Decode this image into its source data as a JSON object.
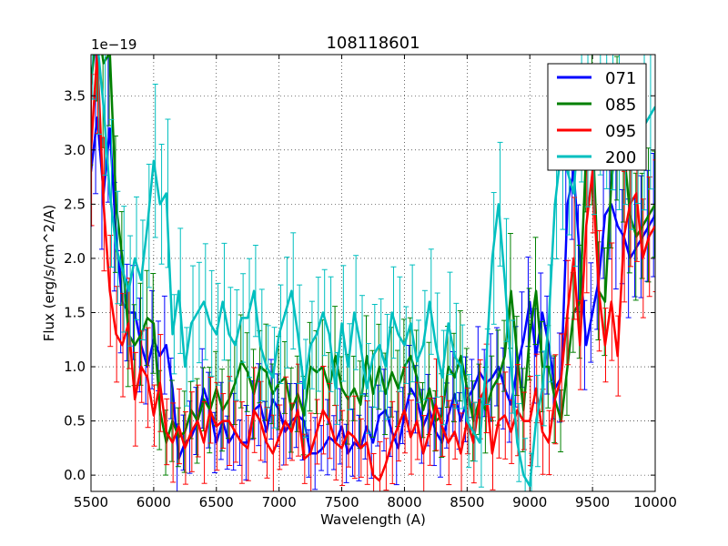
{
  "chart_data": {
    "type": "line",
    "title": "108118601",
    "xlabel": "Wavelength (A)",
    "ylabel": "Flux (erg/s/cm^2/A)",
    "y_multiplier_label": "1e−19",
    "xlim": [
      5500,
      10000
    ],
    "ylim": [
      -0.15,
      3.88
    ],
    "x_ticks": [
      5500,
      6000,
      6500,
      7000,
      7500,
      8000,
      8500,
      9000,
      9500,
      10000
    ],
    "x_tick_labels": [
      "5500",
      "6000",
      "6500",
      "7000",
      "7500",
      "8000",
      "8500",
      "9000",
      "9500",
      "10000"
    ],
    "y_ticks": [
      0.0,
      0.5,
      1.0,
      1.5,
      2.0,
      2.5,
      3.0,
      3.5
    ],
    "y_tick_labels": [
      "0.0",
      "0.5",
      "1.0",
      "1.5",
      "2.0",
      "2.5",
      "3.0",
      "3.5"
    ],
    "grid": true,
    "legend_position": "top-right",
    "x_start": 5500,
    "x_step": 50,
    "series": [
      {
        "name": "071",
        "color": "#0000ff",
        "values": [
          2.8,
          3.3,
          2.6,
          3.2,
          2.2,
          1.6,
          1.5,
          1.5,
          1.2,
          1.0,
          1.25,
          1.1,
          1.2,
          0.8,
          0.15,
          0.3,
          0.35,
          0.5,
          0.8,
          0.6,
          0.3,
          0.5,
          0.3,
          0.4,
          0.3,
          0.3,
          0.6,
          0.65,
          0.4,
          0.7,
          0.6,
          0.4,
          0.5,
          0.55,
          0.5,
          0.2,
          0.2,
          0.25,
          0.35,
          0.3,
          0.45,
          0.2,
          0.3,
          0.25,
          0.45,
          0.3,
          0.55,
          0.6,
          0.4,
          0.25,
          0.55,
          0.8,
          0.7,
          0.45,
          0.6,
          0.4,
          0.3,
          0.55,
          0.75,
          0.5,
          0.7,
          0.8,
          0.95,
          0.85,
          0.9,
          1.0,
          0.8,
          0.65,
          1.0,
          1.25,
          1.6,
          1.1,
          1.5,
          1.2,
          0.8,
          0.9,
          2.5,
          2.8,
          2.0,
          1.2,
          1.5,
          1.8,
          2.4,
          2.5,
          2.3,
          2.2,
          2.0,
          2.1,
          2.2,
          2.3,
          2.4
        ]
      },
      {
        "name": "085",
        "color": "#008000",
        "values": [
          3.6,
          4.2,
          3.8,
          3.9,
          2.5,
          2.0,
          1.3,
          1.2,
          1.3,
          1.45,
          1.4,
          0.6,
          0.3,
          0.5,
          0.35,
          0.4,
          0.6,
          0.5,
          0.7,
          0.6,
          0.8,
          0.6,
          0.7,
          0.85,
          1.05,
          0.95,
          0.75,
          1.0,
          0.95,
          0.75,
          0.85,
          0.9,
          0.6,
          0.75,
          0.55,
          1.0,
          0.95,
          1.0,
          0.8,
          1.1,
          0.8,
          0.7,
          0.8,
          0.65,
          1.1,
          0.75,
          1.0,
          0.75,
          0.95,
          0.8,
          1.0,
          1.1,
          0.9,
          0.6,
          0.8,
          0.5,
          0.55,
          1.0,
          0.9,
          1.1,
          0.8,
          0.5,
          0.7,
          0.6,
          0.8,
          0.9,
          1.1,
          1.7,
          1.1,
          0.6,
          1.3,
          1.7,
          1.0,
          1.0,
          0.7,
          0.5,
          1.0,
          1.5,
          1.6,
          3.0,
          3.2,
          1.7,
          1.6,
          2.7,
          3.2,
          3.0,
          2.4,
          2.2,
          2.3,
          2.4,
          2.5
        ]
      },
      {
        "name": "095",
        "color": "#ff0000",
        "values": [
          3.0,
          3.9,
          2.5,
          1.7,
          1.3,
          1.2,
          1.4,
          0.7,
          1.0,
          0.9,
          0.55,
          0.85,
          0.4,
          0.3,
          0.45,
          0.25,
          0.4,
          0.5,
          0.3,
          0.6,
          0.45,
          0.5,
          0.5,
          0.4,
          0.3,
          0.25,
          0.6,
          0.5,
          0.3,
          0.2,
          0.35,
          0.5,
          0.4,
          0.6,
          0.15,
          0.2,
          0.4,
          0.6,
          0.5,
          0.3,
          0.25,
          0.4,
          0.35,
          0.25,
          0.3,
          0.0,
          -0.05,
          0.1,
          0.3,
          0.45,
          0.6,
          0.35,
          0.5,
          0.2,
          0.4,
          0.65,
          0.45,
          0.3,
          0.4,
          0.2,
          0.5,
          0.3,
          0.7,
          0.8,
          0.2,
          0.5,
          0.55,
          0.4,
          0.6,
          0.5,
          0.5,
          0.8,
          0.4,
          0.3,
          0.7,
          0.9,
          1.5,
          2.0,
          1.2,
          2.3,
          2.8,
          1.7,
          1.2,
          1.6,
          1.1,
          2.2,
          2.5,
          2.6,
          2.0,
          2.2,
          2.3
        ]
      },
      {
        "name": "200",
        "color": "#00bfbf",
        "values": [
          4.2,
          4.0,
          3.4,
          2.6,
          2.1,
          1.9,
          1.7,
          2.0,
          1.8,
          2.3,
          2.9,
          2.5,
          2.6,
          1.3,
          1.7,
          1.0,
          1.4,
          1.5,
          1.6,
          1.4,
          1.3,
          1.6,
          1.3,
          1.2,
          1.45,
          1.45,
          1.7,
          1.2,
          1.0,
          0.9,
          1.3,
          1.5,
          1.7,
          1.3,
          0.8,
          1.2,
          1.3,
          1.5,
          1.3,
          0.8,
          1.4,
          1.0,
          1.5,
          1.2,
          0.8,
          1.1,
          1.2,
          1.0,
          1.5,
          1.3,
          1.2,
          1.4,
          1.05,
          1.2,
          1.6,
          1.2,
          0.9,
          1.4,
          1.1,
          1.0,
          0.5,
          0.4,
          0.3,
          1.0,
          2.0,
          2.5,
          1.8,
          1.0,
          0.3,
          0.0,
          -0.1,
          0.5,
          0.8,
          1.4,
          2.5,
          3.0,
          2.8,
          2.6,
          3.4,
          3.2,
          3.1,
          3.5,
          3.4,
          3.3,
          3.2,
          3.1,
          3.0,
          3.1,
          3.2,
          3.3,
          3.4
        ]
      }
    ]
  }
}
